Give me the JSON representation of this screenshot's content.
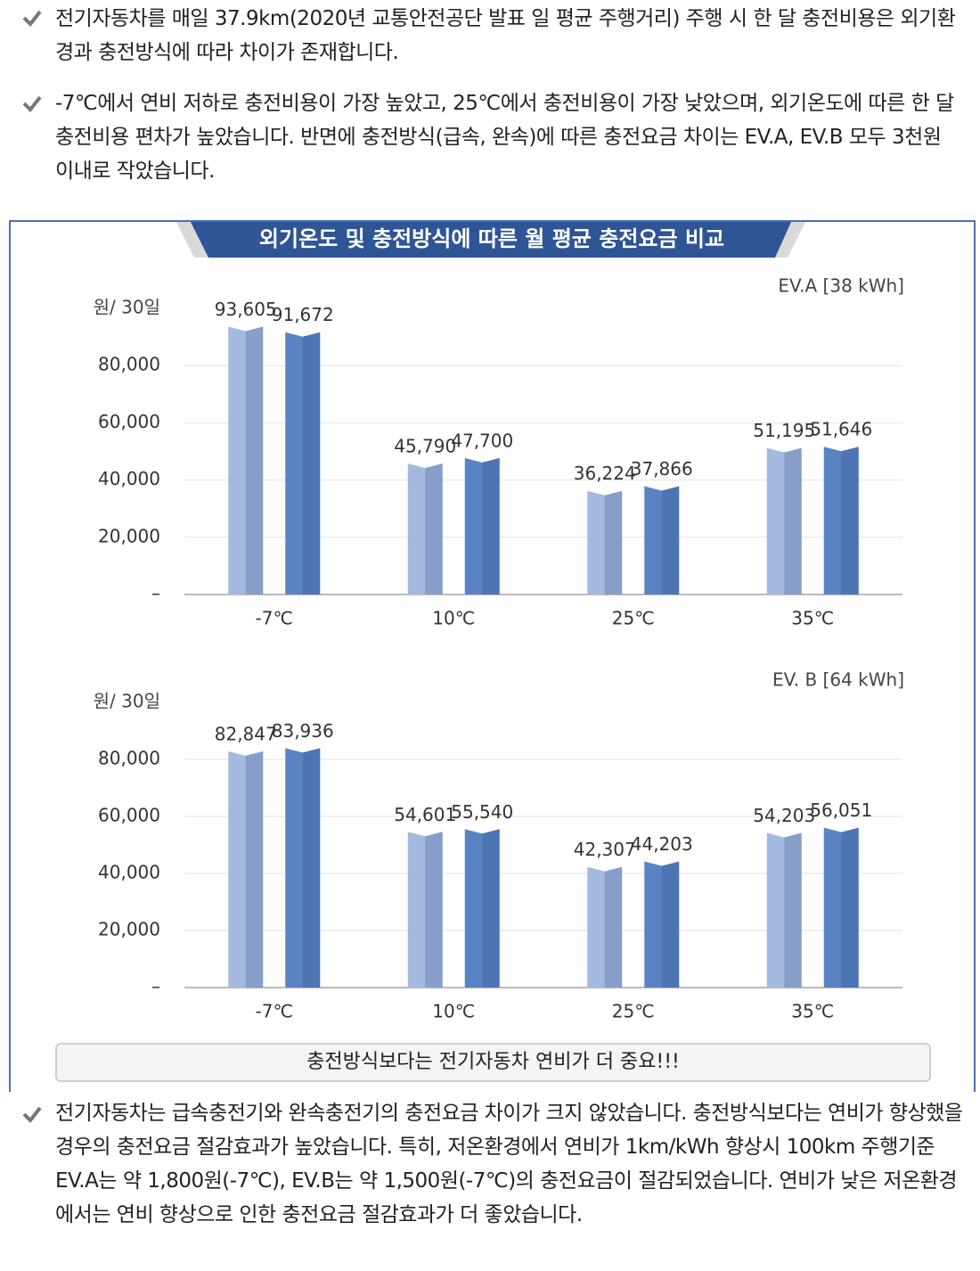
{
  "intro": [
    "전기자동차를 매일 37.9km(2020년 교통안전공단 발표 일 평균 주행거리) 주행 시 한 달 충전비용은 외기환경과 충전방식에 따라 차이가 존재합니다.",
    "-7℃에서 연비 저하로 충전비용이 가장 높았고, 25℃에서 충전비용이 가장 낮았으며, 외기온도에 따른 한 달 충전비용 편차가 높았습니다. 반면에 충전방식(급속, 완속)에 따른 충전요금 차이는 EV.A, EV.B 모두 3천원 이내로 작았습니다."
  ],
  "chart_heading": "외기온도 및 충전방식에 따른 월 평균 충전요금 비교",
  "chart_data": [
    {
      "type": "bar",
      "title": "EV.A [38 kWh]",
      "y_label": "원/ 30일",
      "categories": [
        "-7℃",
        "10℃",
        "25℃",
        "35℃"
      ],
      "series": [
        {
          "color": "#a3b9df",
          "values": [
            93605,
            45790,
            36224,
            51195
          ],
          "value_labels": [
            "93,605",
            "45,790",
            "36,224",
            "51,195"
          ]
        },
        {
          "color": "#5a83c3",
          "values": [
            91672,
            47700,
            37866,
            51646
          ],
          "value_labels": [
            "91,672",
            "47,700",
            "37,866",
            "51,646"
          ]
        }
      ],
      "ylim": [
        0,
        100000
      ],
      "yticks": [
        {
          "value": 0,
          "label": "–"
        },
        {
          "value": 20000,
          "label": "20,000"
        },
        {
          "value": 40000,
          "label": "40,000"
        },
        {
          "value": 60000,
          "label": "60,000"
        },
        {
          "value": 80000,
          "label": "80,000"
        }
      ],
      "grid": true
    },
    {
      "type": "bar",
      "title": "EV. B [64 kWh]",
      "y_label": "원/ 30일",
      "categories": [
        "-7℃",
        "10℃",
        "25℃",
        "35℃"
      ],
      "series": [
        {
          "color": "#a3b9df",
          "values": [
            82847,
            54601,
            42307,
            54203
          ],
          "value_labels": [
            "82,847",
            "54,601",
            "42,307",
            "54,203"
          ]
        },
        {
          "color": "#5a83c3",
          "values": [
            83936,
            55540,
            44203,
            56051
          ],
          "value_labels": [
            "83,936",
            "55,540",
            "44,203",
            "56,051"
          ]
        }
      ],
      "ylim": [
        0,
        100000
      ],
      "yticks": [
        {
          "value": 0,
          "label": "–"
        },
        {
          "value": 20000,
          "label": "20,000"
        },
        {
          "value": 40000,
          "label": "40,000"
        },
        {
          "value": 60000,
          "label": "60,000"
        },
        {
          "value": 80000,
          "label": "80,000"
        }
      ],
      "grid": true
    }
  ],
  "callout": "충전방식보다는 전기자동차 연비가 더 중요!!!",
  "conclusion": "전기자동차는 급속충전기와 완속충전기의 충전요금 차이가 크지 않았습니다. 충전방식보다는 연비가 향상했을 경우의 충전요금 절감효과가 높았습니다. 특히, 저온환경에서 연비가 1km/kWh 향상시 100km 주행기준 EV.A는 약 1,800원(-7℃), EV.B는 약 1,500원(-7℃)의 충전요금이 절감되었습니다. 연비가 낮은 저온환경에서는 연비 향상으로 인한 충전요금 절감효과가 더 좋았습니다."
}
